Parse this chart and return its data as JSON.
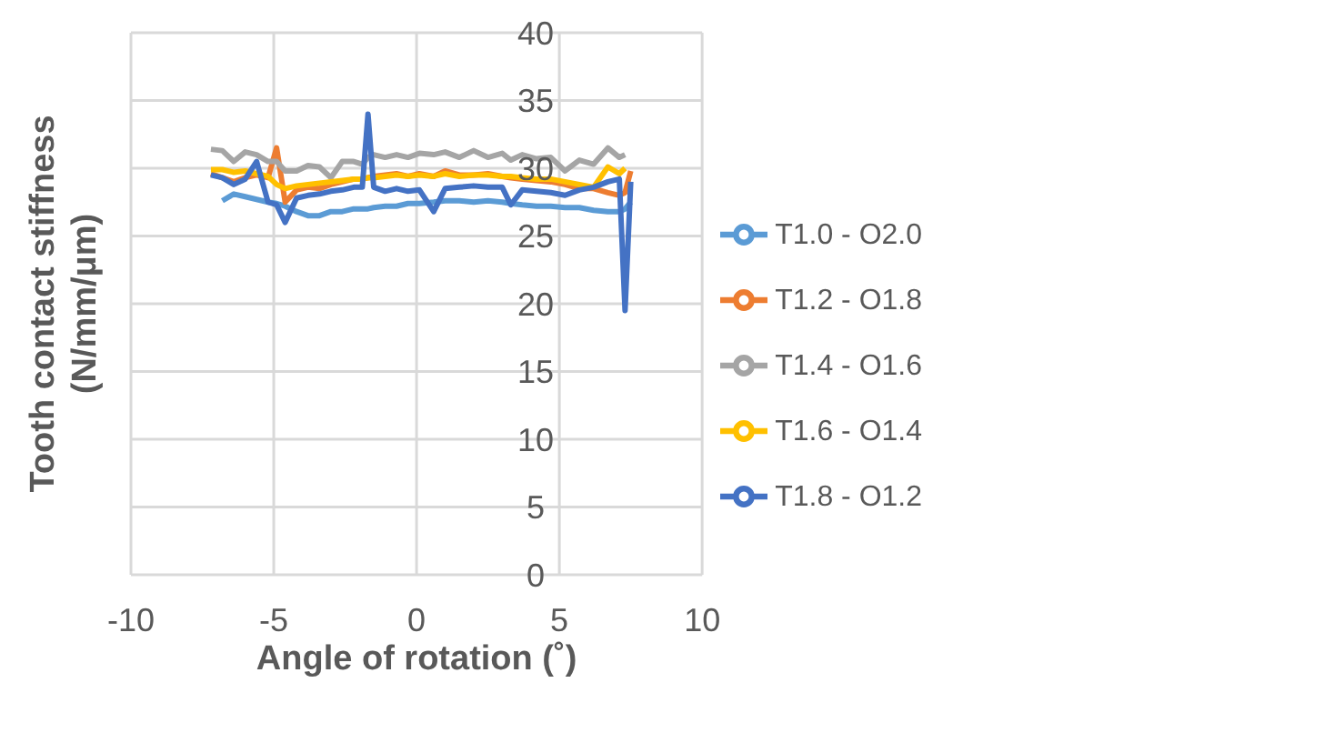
{
  "chart_data": {
    "type": "line",
    "xlabel": "Angle of rotation (˚)",
    "ylabel": "Tooth contact stiffness (N/mm/μm)",
    "x": [
      -7.2,
      -6.8,
      -6.4,
      -6,
      -5.6,
      -5.2,
      -4.9,
      -4.6,
      -4.2,
      -3.8,
      -3.4,
      -3,
      -2.6,
      -2.2,
      -1.9,
      -1.7,
      -1.5,
      -1.1,
      -0.7,
      -0.3,
      0.1,
      0.6,
      1,
      1.5,
      2,
      2.5,
      3,
      3.3,
      3.7,
      4.2,
      4.7,
      5.2,
      5.7,
      6.2,
      6.7,
      7.1,
      7.3,
      7.5
    ],
    "series": [
      {
        "name": "T1.0 - O2.0",
        "color": "#5b9bd5",
        "values": [
          null,
          27.6,
          28.1,
          27.9,
          27.7,
          27.5,
          27.4,
          27.2,
          26.8,
          26.5,
          26.5,
          26.8,
          26.8,
          27,
          27,
          27,
          27.1,
          27.2,
          27.2,
          27.4,
          27.4,
          27.5,
          27.6,
          27.6,
          27.5,
          27.6,
          27.5,
          27.4,
          27.3,
          27.2,
          27.2,
          27.1,
          27.1,
          26.9,
          26.8,
          26.8,
          27,
          27.5
        ]
      },
      {
        "name": "T1.2 - O1.8",
        "color": "#ed7d31",
        "values": [
          29.6,
          29.3,
          29,
          29.3,
          29.5,
          29.3,
          31.5,
          27.5,
          28.4,
          28.6,
          28.5,
          28.8,
          29,
          29.2,
          29.2,
          29.3,
          29.4,
          29.5,
          29.6,
          29.4,
          29.6,
          29.4,
          29.8,
          29.5,
          29.5,
          29.6,
          29.4,
          29.3,
          29.2,
          29.1,
          29,
          28.8,
          28.5,
          28.5,
          28.2,
          28,
          28.2,
          29.8
        ]
      },
      {
        "name": "T1.4 - O1.6",
        "color": "#a5a5a5",
        "values": [
          31.4,
          31.3,
          30.5,
          31.2,
          31,
          30.5,
          30.5,
          29.8,
          29.8,
          30.2,
          30.1,
          29.3,
          30.5,
          30.5,
          30.3,
          30.8,
          31,
          30.8,
          31,
          30.8,
          31.1,
          31,
          31.2,
          30.8,
          31.3,
          30.8,
          31.1,
          30.6,
          31,
          30.7,
          30.8,
          29.8,
          30.6,
          30.3,
          31.5,
          30.8,
          31,
          null
        ]
      },
      {
        "name": "T1.6 - O1.4",
        "color": "#ffc000",
        "values": [
          29.9,
          29.9,
          29.7,
          29.8,
          29.6,
          29.4,
          28.8,
          28.5,
          28.7,
          28.8,
          28.9,
          29,
          29.1,
          29.2,
          29.2,
          29.3,
          29.3,
          29.4,
          29.5,
          29.4,
          29.5,
          29.4,
          29.6,
          29.4,
          29.5,
          29.5,
          29.4,
          29.4,
          29.3,
          29.2,
          29.2,
          29,
          28.8,
          28.6,
          30.1,
          29.6,
          30,
          null
        ]
      },
      {
        "name": "T1.8 - O1.2",
        "color": "#4472c4",
        "values": [
          29.5,
          29.3,
          28.8,
          29.2,
          30.5,
          27.5,
          27.3,
          26,
          27.8,
          28,
          28.1,
          28.3,
          28.4,
          28.6,
          28.6,
          34,
          28.6,
          28.3,
          28.5,
          28.3,
          28.4,
          26.8,
          28.5,
          28.6,
          28.7,
          28.6,
          28.6,
          27.3,
          28.4,
          28.3,
          28.2,
          28,
          28.4,
          28.6,
          29,
          29.2,
          19.5,
          29
        ]
      }
    ],
    "xlim": [
      -10,
      10
    ],
    "xticks": [
      -10,
      -5,
      0,
      5,
      10
    ],
    "ylim": [
      0,
      40
    ],
    "yticks": [
      0,
      5,
      10,
      15,
      20,
      25,
      30,
      35,
      40
    ],
    "grid": true,
    "legend": "right",
    "marker": "none",
    "line_style": "solid"
  }
}
